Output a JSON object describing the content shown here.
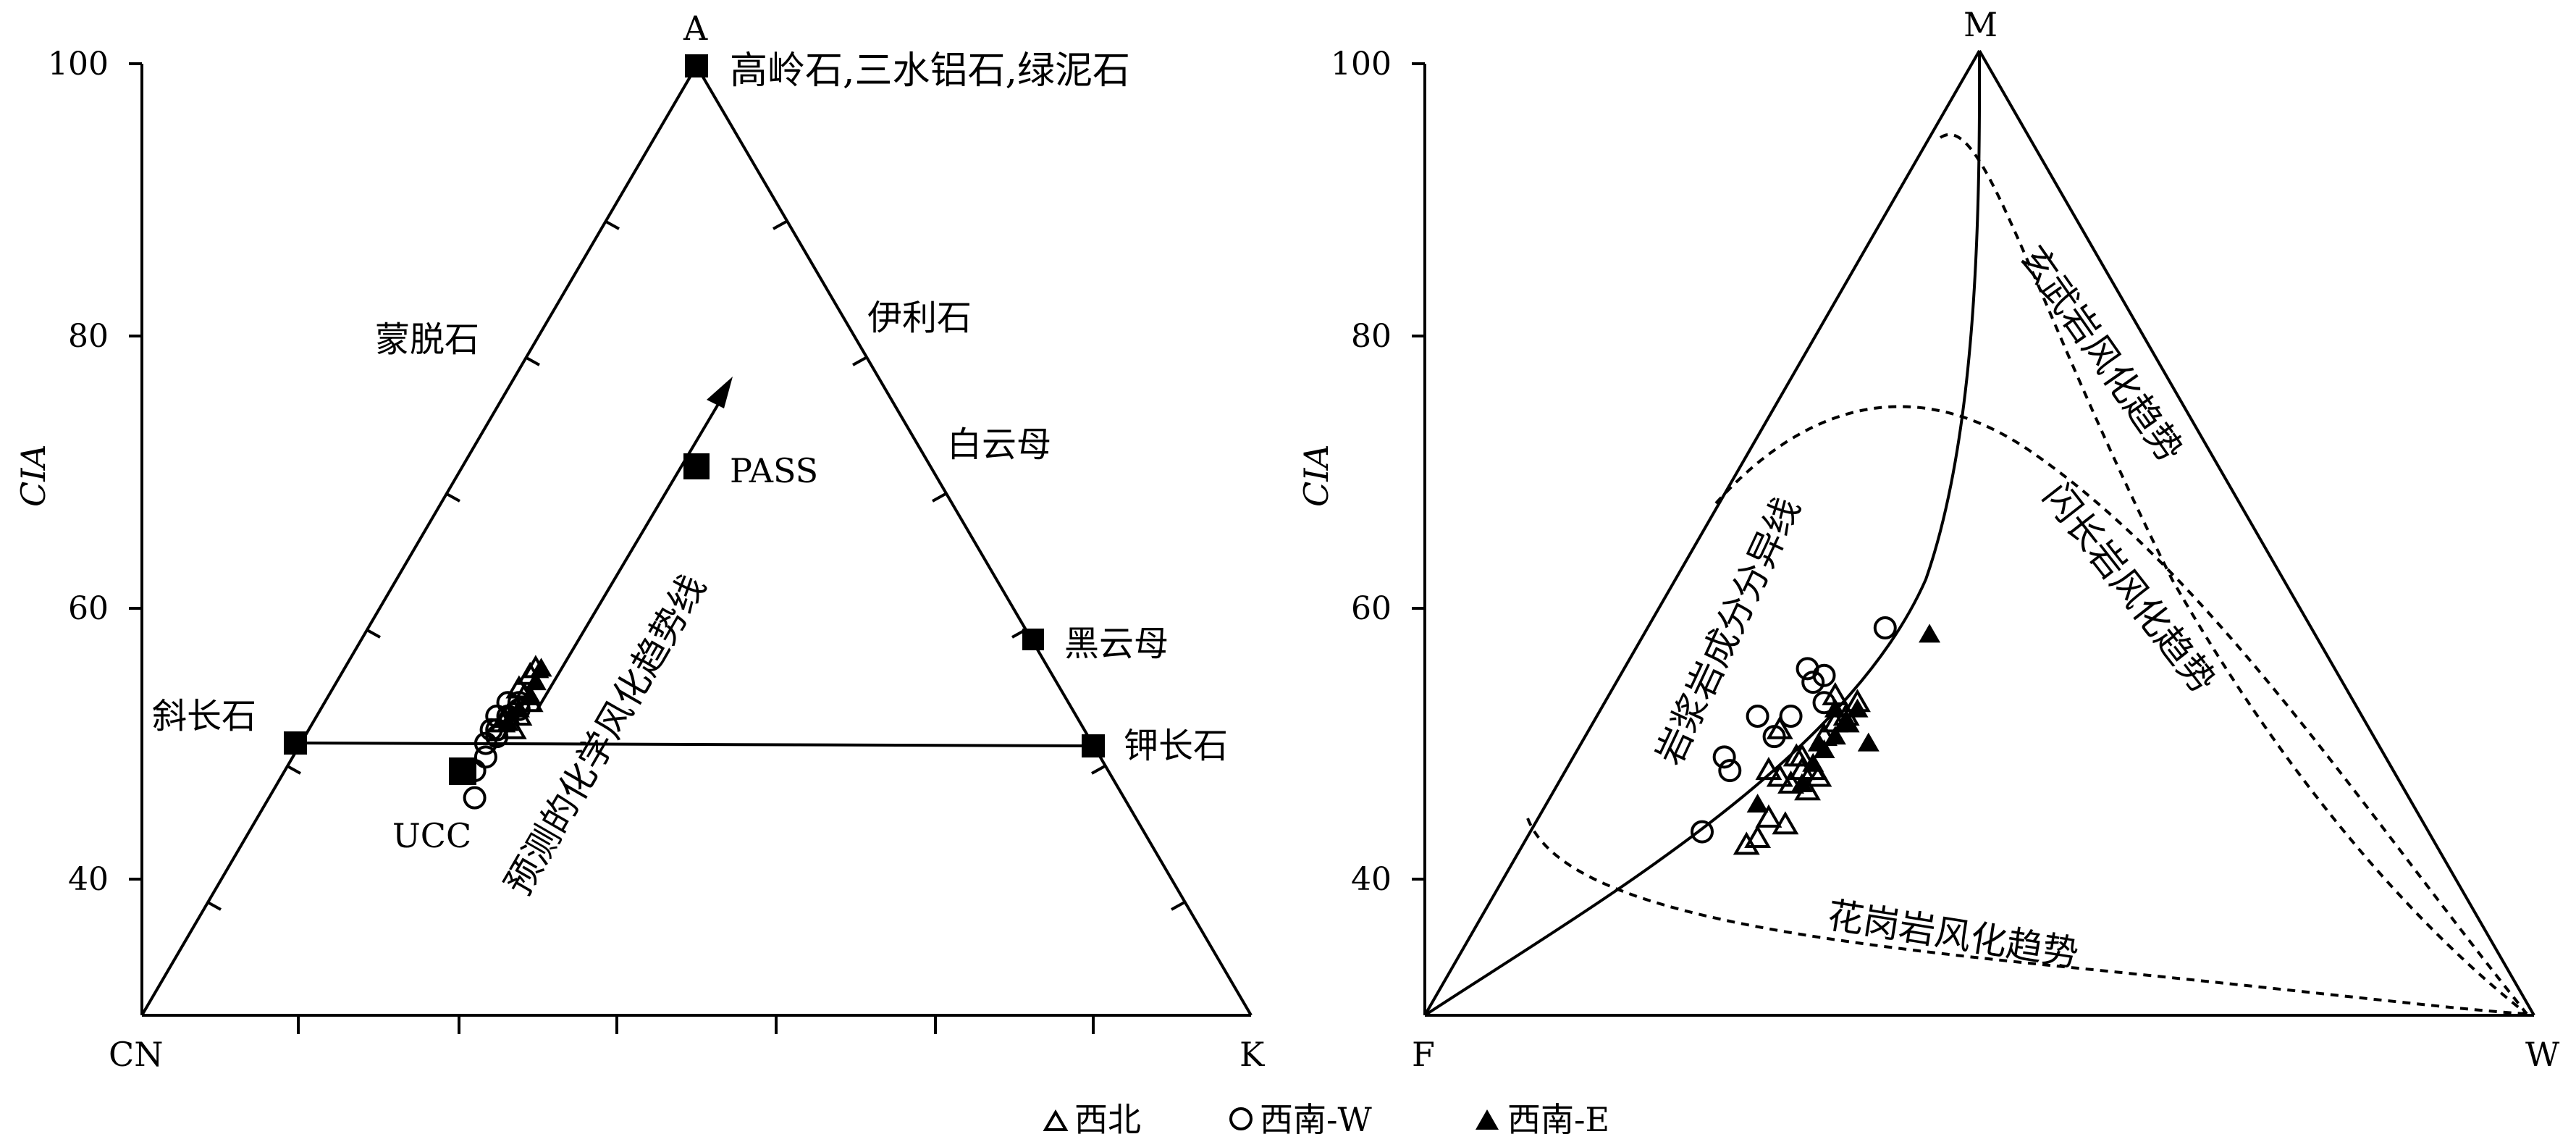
{
  "chart_data": [
    {
      "type": "scatter",
      "diagram": "ternary A-CN-K",
      "apex_labels": {
        "top": "A",
        "left": "CN",
        "right": "K"
      },
      "ylabel": "CIA",
      "yticks": [
        "100",
        "80",
        "60",
        "40"
      ],
      "ylim": [
        30,
        100
      ],
      "minerals": [
        {
          "name": "高岭石,三水铝石,绿泥石",
          "cia": 100,
          "pos": 0.5,
          "marker": true
        },
        {
          "name": "蒙脱石",
          "cia": 80,
          "pos": 0.29,
          "marker": false
        },
        {
          "name": "伊利石",
          "cia": 80,
          "pos": 0.71,
          "marker": false
        },
        {
          "name": "白云母",
          "cia": 71,
          "pos": 0.83,
          "marker": false
        },
        {
          "name": "黑云母",
          "cia": 57.5,
          "pos": 0.81,
          "marker": true
        },
        {
          "name": "斜长石",
          "cia": 50,
          "pos": 0.14,
          "marker": true
        },
        {
          "name": "钾长石",
          "cia": 50,
          "pos": 0.86,
          "marker": true
        },
        {
          "name": "PASS",
          "cia": 70.5,
          "pos": 0.5,
          "marker": true
        },
        {
          "name": "UCC",
          "cia": 48,
          "pos": 0.29,
          "marker": true
        }
      ],
      "trend_label": "预测的化学风化趋势线",
      "samples": {
        "西北": [
          [
            0.35,
            55
          ],
          [
            0.355,
            55.5
          ],
          [
            0.34,
            54
          ],
          [
            0.35,
            53
          ],
          [
            0.345,
            53.5
          ],
          [
            0.33,
            52
          ],
          [
            0.34,
            52
          ],
          [
            0.335,
            51
          ],
          [
            0.325,
            51.5
          ]
        ],
        "西南-W": [
          [
            0.3,
            46
          ],
          [
            0.3,
            48
          ],
          [
            0.31,
            49
          ],
          [
            0.31,
            50
          ],
          [
            0.32,
            50.5
          ],
          [
            0.315,
            51
          ],
          [
            0.32,
            51
          ],
          [
            0.32,
            52
          ],
          [
            0.33,
            52
          ],
          [
            0.33,
            53
          ],
          [
            0.34,
            52.5
          ],
          [
            0.34,
            53
          ]
        ],
        "西南-E": [
          [
            0.33,
            51.5
          ],
          [
            0.34,
            52.5
          ],
          [
            0.35,
            53.5
          ],
          [
            0.355,
            54.5
          ],
          [
            0.36,
            55.5
          ]
        ]
      }
    },
    {
      "type": "scatter",
      "diagram": "ternary M-F-W",
      "apex_labels": {
        "top": "M",
        "left": "F",
        "right": "W"
      },
      "ylabel": "CIA",
      "yticks": [
        "100",
        "80",
        "60",
        "40"
      ],
      "ylim": [
        30,
        100
      ],
      "curve_labels": [
        "岩浆岩成分分异线",
        "玄武岩风化趋势",
        "闪长岩风化趋势",
        "花岗岩风化趋势"
      ],
      "samples": {
        "西北": [
          [
            0.29,
            42.5
          ],
          [
            0.3,
            43
          ],
          [
            0.31,
            44.5
          ],
          [
            0.325,
            44
          ],
          [
            0.31,
            48
          ],
          [
            0.32,
            47.5
          ],
          [
            0.33,
            47
          ],
          [
            0.335,
            49
          ],
          [
            0.34,
            49
          ],
          [
            0.34,
            48
          ],
          [
            0.345,
            46.5
          ],
          [
            0.35,
            48
          ],
          [
            0.355,
            47.5
          ],
          [
            0.36,
            50.5
          ],
          [
            0.37,
            51.5
          ],
          [
            0.38,
            52
          ],
          [
            0.39,
            53
          ],
          [
            0.32,
            51
          ],
          [
            0.37,
            53.5
          ],
          [
            0.38,
            51.5
          ]
        ],
        "西南-W": [
          [
            0.25,
            43.5
          ],
          [
            0.27,
            49
          ],
          [
            0.275,
            48
          ],
          [
            0.3,
            52
          ],
          [
            0.315,
            50.5
          ],
          [
            0.33,
            52
          ],
          [
            0.345,
            55.5
          ],
          [
            0.35,
            54.5
          ],
          [
            0.36,
            55
          ],
          [
            0.36,
            53
          ],
          [
            0.415,
            58.5
          ]
        ],
        "西南-E": [
          [
            0.3,
            45.5
          ],
          [
            0.34,
            47
          ],
          [
            0.35,
            48.5
          ],
          [
            0.355,
            50
          ],
          [
            0.36,
            49.5
          ],
          [
            0.37,
            50.5
          ],
          [
            0.37,
            52.5
          ],
          [
            0.38,
            51.5
          ],
          [
            0.39,
            52.5
          ],
          [
            0.4,
            50
          ],
          [
            0.455,
            58
          ]
        ]
      }
    }
  ],
  "legend": [
    {
      "label": "西北",
      "marker": "open-triangle"
    },
    {
      "label": "西南-W",
      "marker": "open-circle"
    },
    {
      "label": "西南-E",
      "marker": "filled-triangle"
    }
  ]
}
